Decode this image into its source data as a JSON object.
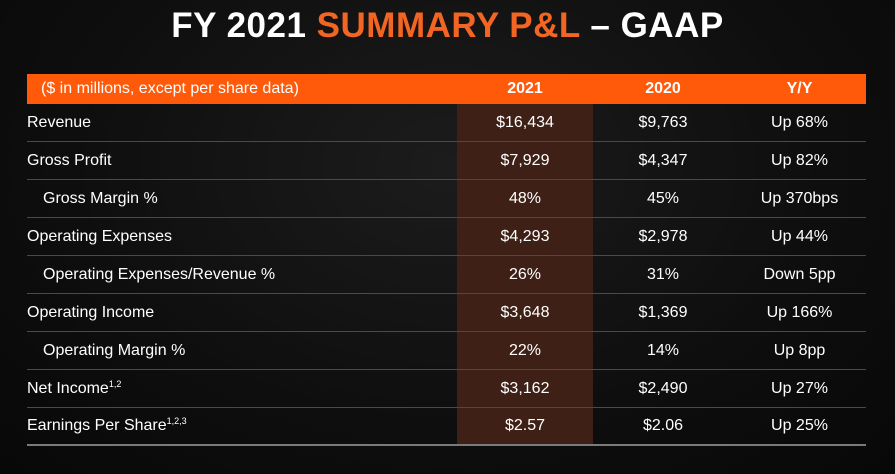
{
  "title": {
    "part1": "FY 2021 ",
    "part2": "SUMMARY P&L",
    "part3": " – GAAP"
  },
  "colors": {
    "accent": "#f26522",
    "header_bar": "#ff5a0a",
    "highlight_column": "#3e2016"
  },
  "header": {
    "label": "($ in millions, except per share data)",
    "col_2021": "2021",
    "col_2020": "2020",
    "col_yy": "Y/Y"
  },
  "rows": [
    {
      "label": "Revenue",
      "sup": "",
      "v2021": "$16,434",
      "v2020": "$9,763",
      "yy": "Up 68%"
    },
    {
      "label": "Gross Profit",
      "sup": "",
      "v2021": "$7,929",
      "v2020": "$4,347",
      "yy": "Up 82%"
    },
    {
      "label": "Gross Margin %",
      "sup": "",
      "v2021": "48%",
      "v2020": "45%",
      "yy": "Up 370bps"
    },
    {
      "label": "Operating Expenses",
      "sup": "",
      "v2021": "$4,293",
      "v2020": "$2,978",
      "yy": "Up 44%"
    },
    {
      "label": "Operating Expenses/Revenue %",
      "sup": "",
      "v2021": "26%",
      "v2020": "31%",
      "yy": "Down 5pp"
    },
    {
      "label": "Operating Income",
      "sup": "",
      "v2021": "$3,648",
      "v2020": "$1,369",
      "yy": "Up 166%"
    },
    {
      "label": "Operating Margin %",
      "sup": "",
      "v2021": "22%",
      "v2020": "14%",
      "yy": "Up 8pp"
    },
    {
      "label": "Net Income",
      "sup": "1,2",
      "v2021": "$3,162",
      "v2020": "$2,490",
      "yy": "Up 27%"
    },
    {
      "label": "Earnings Per Share",
      "sup": "1,2,3",
      "v2021": "$2.57",
      "v2020": "$2.06",
      "yy": "Up 25%"
    }
  ]
}
